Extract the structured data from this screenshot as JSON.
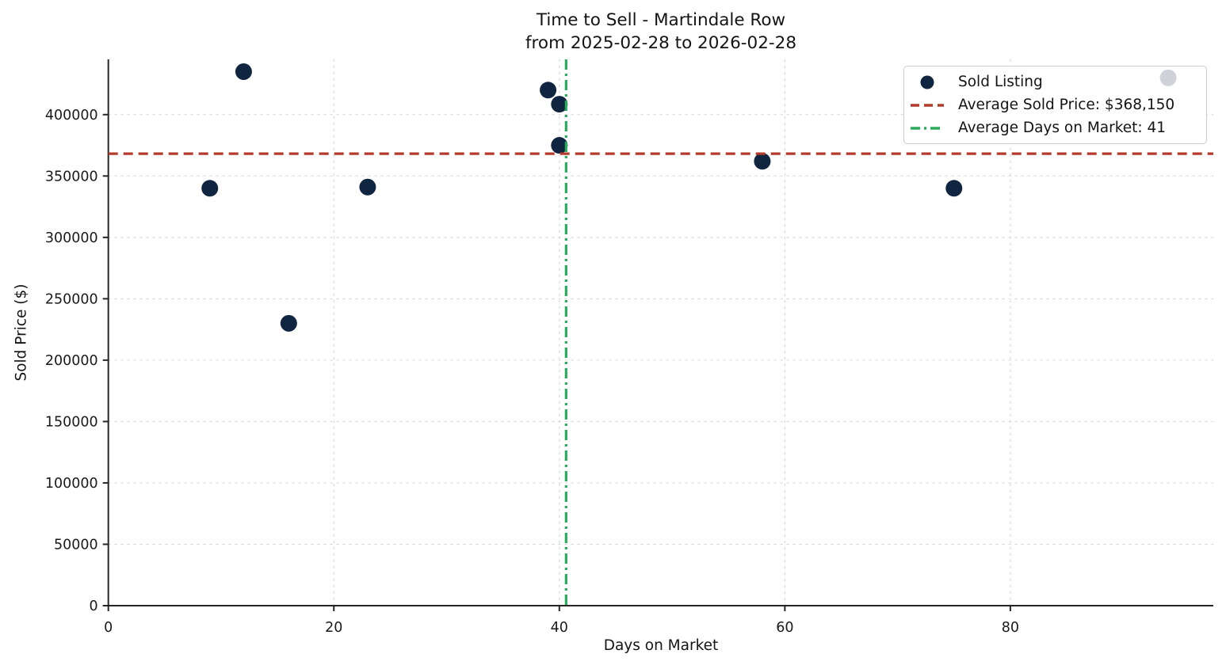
{
  "chart_data": {
    "type": "scatter",
    "title": "Time to Sell - Martindale Row",
    "subtitle": "from 2025-02-28 to 2026-02-28",
    "xlabel": "Days on Market",
    "ylabel": "Sold Price ($)",
    "xlim": [
      0,
      98
    ],
    "ylim": [
      0,
      445000
    ],
    "x_ticks": [
      0,
      20,
      40,
      60,
      80
    ],
    "y_ticks": [
      0,
      50000,
      100000,
      150000,
      200000,
      250000,
      300000,
      350000,
      400000
    ],
    "grid": true,
    "points": [
      {
        "days": 12,
        "price": 435000
      },
      {
        "days": 9,
        "price": 340000
      },
      {
        "days": 16,
        "price": 230000
      },
      {
        "days": 23,
        "price": 341000
      },
      {
        "days": 39,
        "price": 420000
      },
      {
        "days": 40,
        "price": 408500
      },
      {
        "days": 40,
        "price": 375000
      },
      {
        "days": 58,
        "price": 362000
      },
      {
        "days": 75,
        "price": 340000
      },
      {
        "days": 94,
        "price": 430000
      }
    ],
    "avg_sold_price": 368150,
    "avg_days_on_market": 40.6,
    "legend": [
      {
        "label": "Sold Listing",
        "marker": "dot",
        "color": "#0f2540"
      },
      {
        "label": "Average Sold Price: $368,150",
        "marker": "dashed",
        "color": "#b43a2a"
      },
      {
        "label": "Average Days on Market: 41",
        "marker": "dashdot",
        "color": "#2bab5e"
      }
    ],
    "legend_position": "upper right",
    "colors": {
      "dot": "#0f2540",
      "avg_price_line": "#b43a2a",
      "avg_days_line": "#2bab5e",
      "grid": "#d2d2d2",
      "spine": "#262626",
      "tick_text": "#1a1a1a"
    }
  }
}
